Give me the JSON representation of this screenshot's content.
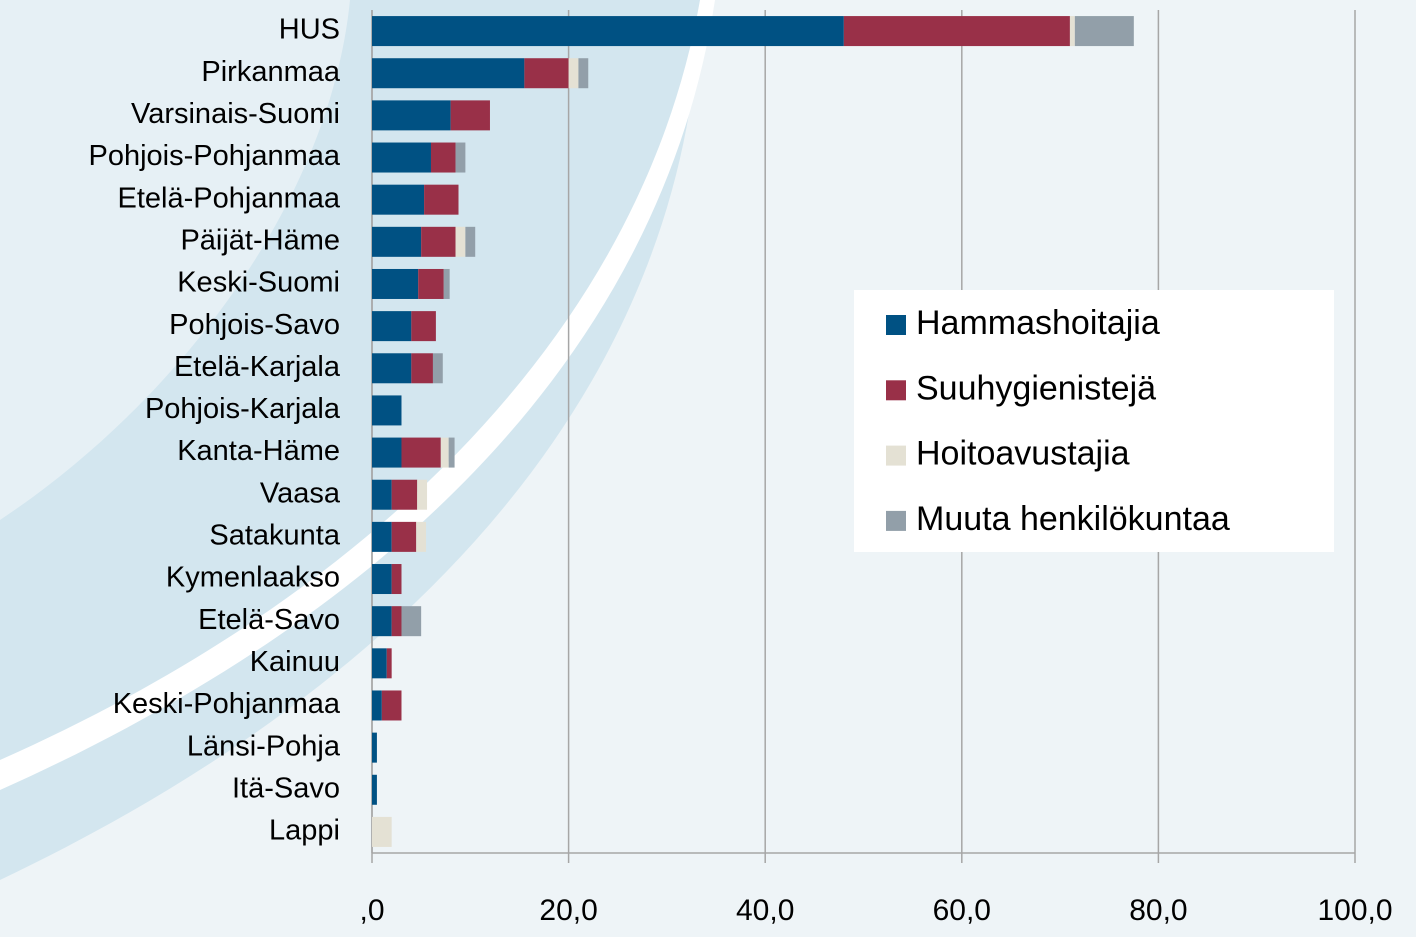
{
  "chart_data": {
    "type": "stacked-barh",
    "categories": [
      "HUS",
      "Pirkanmaa",
      "Varsinais-Suomi",
      "Pohjois-Pohjanmaa",
      "Etelä-Pohjanmaa",
      "Päijät-Häme",
      "Keski-Suomi",
      "Pohjois-Savo",
      "Etelä-Karjala",
      "Pohjois-Karjala",
      "Kanta-Häme",
      "Vaasa",
      "Satakunta",
      "Kymenlaakso",
      "Etelä-Savo",
      "Kainuu",
      "Keski-Pohjanmaa",
      "Länsi-Pohja",
      "Itä-Savo",
      "Lappi"
    ],
    "series": [
      {
        "name": "Hammashoitajia",
        "color": "#005183",
        "values": [
          48,
          15.5,
          8,
          6,
          5.3,
          5,
          4.7,
          4,
          4,
          3,
          3,
          2,
          2,
          2,
          2,
          1.5,
          1,
          0.5,
          0.5,
          0
        ]
      },
      {
        "name": "Suuhygienistejä",
        "color": "#993048",
        "values": [
          23,
          4.5,
          4,
          2.5,
          3.5,
          3.5,
          2.6,
          2.5,
          2.2,
          0,
          4,
          2.6,
          2.5,
          1,
          1,
          0.5,
          2,
          0,
          0,
          0
        ]
      },
      {
        "name": "Hoitoavustajia",
        "color": "#e4e1d4",
        "values": [
          0.5,
          1,
          0,
          0,
          0,
          1,
          0,
          0,
          0,
          0,
          0.8,
          1,
          1,
          0,
          0,
          0,
          0,
          0,
          0,
          2
        ]
      },
      {
        "name": "Muuta henkilökuntaa",
        "color": "#929fa9",
        "values": [
          6,
          1,
          0,
          1,
          0,
          1,
          0.6,
          0,
          1,
          0,
          0.6,
          0,
          0,
          0,
          2,
          0,
          0,
          0,
          0,
          0
        ]
      }
    ],
    "xlim": [
      0,
      100
    ],
    "xticks": [
      {
        "value": 0,
        "label": ",0"
      },
      {
        "value": 20,
        "label": "20,0"
      },
      {
        "value": 40,
        "label": "40,0"
      },
      {
        "value": 60,
        "label": "60,0"
      },
      {
        "value": 80,
        "label": "80,0"
      },
      {
        "value": 100,
        "label": "100,0"
      }
    ],
    "grid": true
  }
}
